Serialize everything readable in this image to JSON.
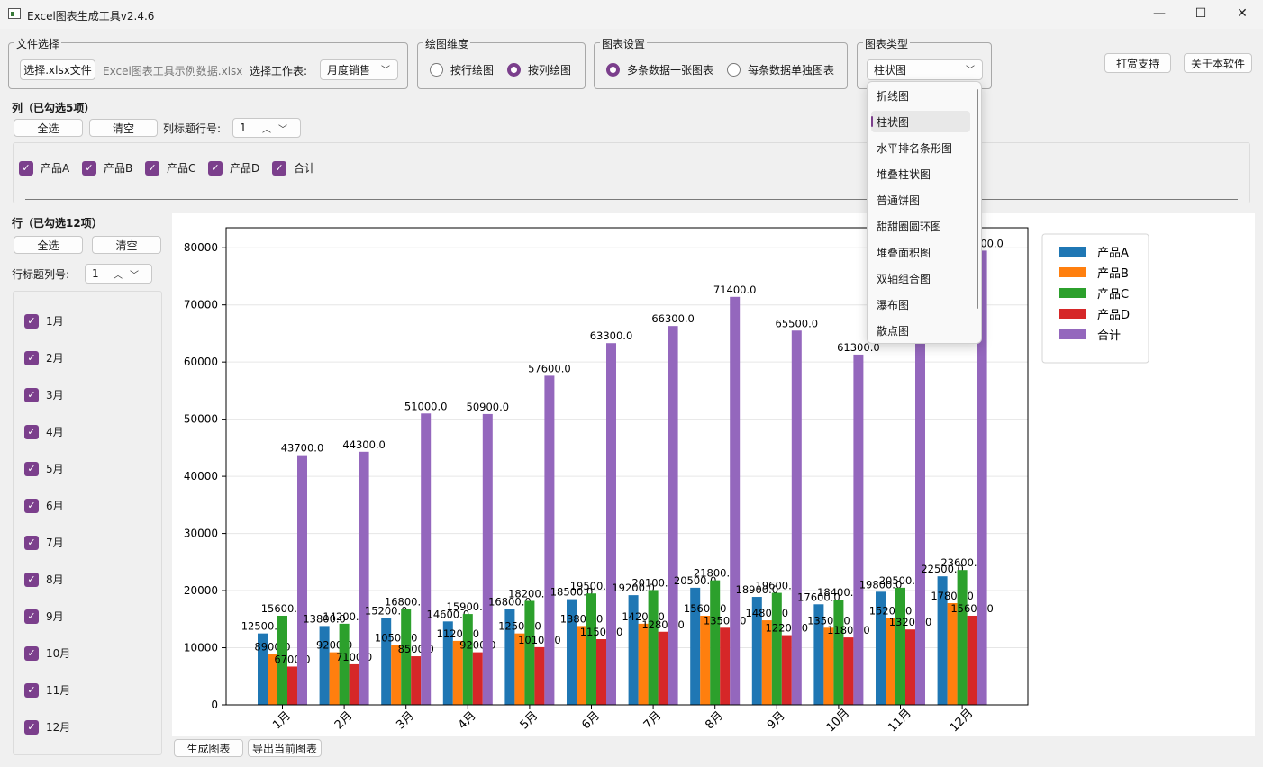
{
  "window": {
    "title": "Excel图表生成工具v2.4.6",
    "minimize": "—",
    "maximize": "☐",
    "close": "✕"
  },
  "file_group": {
    "legend": "文件选择",
    "select_button": "选择.xlsx文件",
    "file_name": "Excel图表工具示例数据.xlsx",
    "sheet_label": "选择工作表:",
    "sheet_value": "月度销售"
  },
  "dimension_group": {
    "legend": "绘图维度",
    "option_row": "按行绘图",
    "option_col": "按列绘图",
    "selected": "option_col"
  },
  "settings_group": {
    "legend": "图表设置",
    "option_one": "多条数据一张图表",
    "option_each": "每条数据单独图表",
    "selected": "option_one"
  },
  "type_group": {
    "legend": "图表类型",
    "value": "柱状图"
  },
  "top_buttons": {
    "donate": "打赏支持",
    "about": "关于本软件"
  },
  "columns": {
    "title": "列（已勾选5项）",
    "select_all": "全选",
    "clear": "清空",
    "header_row_label": "列标题行号:",
    "header_row_value": "1",
    "items": [
      "产品A",
      "产品B",
      "产品C",
      "产品D",
      "合计"
    ]
  },
  "rows": {
    "title": "行（已勾选12项）",
    "select_all": "全选",
    "clear": "清空",
    "header_col_label": "行标题列号:",
    "header_col_value": "1",
    "items": [
      "1月",
      "2月",
      "3月",
      "4月",
      "5月",
      "6月",
      "7月",
      "8月",
      "9月",
      "10月",
      "11月",
      "12月"
    ]
  },
  "dropdown": {
    "items": [
      "折线图",
      "柱状图",
      "水平排名条形图",
      "堆叠柱状图",
      "普通饼图",
      "甜甜圈圆环图",
      "堆叠面积图",
      "双轴组合图",
      "瀑布图",
      "散点图"
    ],
    "selected_index": 1
  },
  "bottom_buttons": {
    "generate": "生成图表",
    "export": "导出当前图表"
  },
  "chart_data": {
    "type": "bar",
    "categories": [
      "1月",
      "2月",
      "3月",
      "4月",
      "5月",
      "6月",
      "7月",
      "8月",
      "9月",
      "10月",
      "11月",
      "12月"
    ],
    "series": [
      {
        "name": "产品A",
        "color": "#1f77b4",
        "values": [
          12500,
          13800,
          15200,
          14600,
          16800,
          18500,
          19200,
          20500,
          18900,
          17600,
          19800,
          22500
        ]
      },
      {
        "name": "产品B",
        "color": "#ff7f0e",
        "values": [
          8900,
          9200,
          10500,
          11200,
          12500,
          13800,
          14200,
          15600,
          14800,
          13500,
          15200,
          17800
        ]
      },
      {
        "name": "产品C",
        "color": "#2ca02c",
        "values": [
          15600,
          14200,
          16800,
          15900,
          18200,
          19500,
          20100,
          21800,
          19600,
          18400,
          20500,
          23600
        ]
      },
      {
        "name": "产品D",
        "color": "#d62728",
        "values": [
          6700,
          7100,
          8500,
          9200,
          10100,
          11500,
          12800,
          13500,
          12200,
          11800,
          13200,
          15600
        ]
      },
      {
        "name": "合计",
        "color": "#9467bd",
        "values": [
          43700,
          44300,
          51000,
          50900,
          57600,
          63300,
          66300,
          71400,
          65500,
          61300,
          68700,
          79500
        ]
      }
    ],
    "yticks": [
      0,
      10000,
      20000,
      30000,
      40000,
      50000,
      60000,
      70000,
      80000
    ],
    "ylim": [
      0,
      83500
    ],
    "grid": true,
    "legend_position": "outside-right"
  }
}
